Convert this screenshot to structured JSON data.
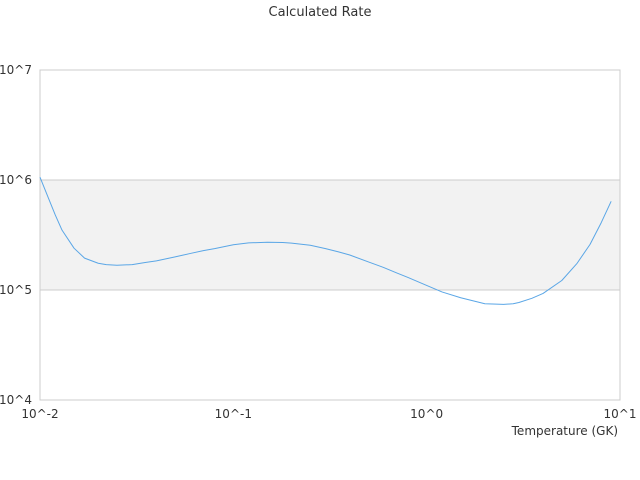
{
  "chart_data": {
    "type": "line",
    "title": "Calculated Rate",
    "xlabel": "Temperature (GK)",
    "ylabel": "",
    "x_scale": "log",
    "y_scale": "log",
    "xlim": [
      0.01,
      10
    ],
    "ylim": [
      10000,
      10000000
    ],
    "x_ticks": [
      {
        "value": 0.01,
        "label": "10^-2"
      },
      {
        "value": 0.1,
        "label": "10^-1"
      },
      {
        "value": 1,
        "label": "10^0"
      },
      {
        "value": 10,
        "label": "10^1"
      }
    ],
    "y_ticks": [
      {
        "value": 10000,
        "label": "10^4"
      },
      {
        "value": 100000,
        "label": "10^5"
      },
      {
        "value": 1000000,
        "label": "10^6"
      },
      {
        "value": 10000000,
        "label": "10^7"
      }
    ],
    "shaded_band": {
      "y_from": 100000,
      "y_to": 1000000,
      "color": "#f2f2f2"
    },
    "legend": "none",
    "colors": {
      "line": "#5aa6e6",
      "axis": "#cccccc",
      "band": "#f2f2f2",
      "text": "#333333"
    },
    "series": [
      {
        "x": [
          0.01,
          0.011,
          0.012,
          0.013,
          0.015,
          0.017,
          0.02,
          0.022,
          0.025,
          0.03,
          0.035,
          0.04,
          0.05,
          0.06,
          0.07,
          0.08,
          0.1,
          0.12,
          0.15,
          0.18,
          0.2,
          0.25,
          0.3,
          0.35,
          0.4,
          0.5,
          0.6,
          0.7,
          0.8,
          1.0,
          1.2,
          1.5,
          2.0,
          2.5,
          2.8,
          3.0,
          3.5,
          4.0,
          5.0,
          6.0,
          7.0,
          8.0,
          9.0
        ],
        "y": [
          1060000,
          700000,
          480000,
          350000,
          240000,
          195000,
          175000,
          170000,
          168000,
          170000,
          178000,
          184000,
          200000,
          215000,
          228000,
          238000,
          258000,
          268000,
          272000,
          270000,
          267000,
          255000,
          238000,
          222000,
          208000,
          180000,
          160000,
          143000,
          130000,
          110000,
          96000,
          85000,
          75000,
          74000,
          75000,
          77000,
          84000,
          93000,
          122000,
          175000,
          260000,
          410000,
          640000
        ]
      }
    ]
  }
}
